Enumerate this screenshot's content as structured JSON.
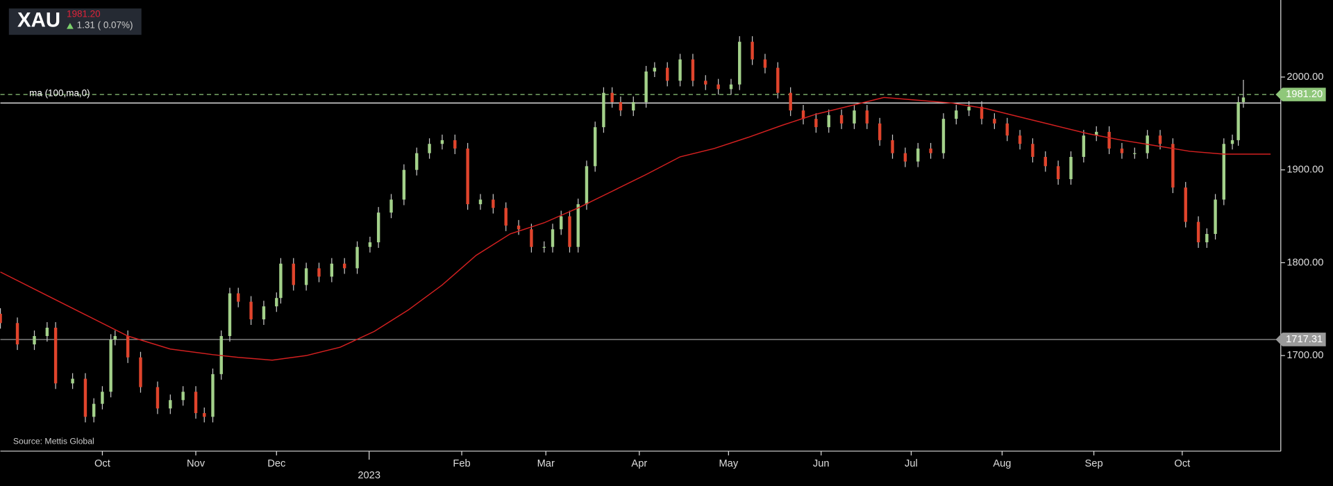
{
  "chart_data": {
    "type": "candlestick",
    "symbol": "XAU",
    "price": "1981.20",
    "change": "1.31 ( 0.07%)",
    "source": "Source: Mettis Global",
    "up_color": "#a3d18a",
    "down_color": "#e0442c",
    "x": [
      0,
      4,
      8,
      11,
      13,
      17,
      20,
      22,
      24,
      26,
      27,
      30,
      33,
      37,
      40,
      43,
      46,
      48,
      50,
      52,
      54,
      56,
      59,
      62,
      65,
      66,
      69,
      72,
      75,
      78,
      81,
      84,
      87,
      89,
      92,
      95,
      98,
      101,
      104,
      107,
      110,
      113,
      116,
      119,
      122,
      125,
      128,
      130,
      132,
      134,
      136,
      138,
      140,
      142,
      144,
      146,
      149,
      152,
      154,
      157,
      160,
      163,
      166,
      169,
      172,
      174,
      177,
      180,
      183,
      186,
      189,
      192,
      195,
      198,
      201,
      204,
      207,
      210,
      213,
      216,
      219,
      222,
      225,
      228,
      231,
      234,
      237,
      240,
      243,
      246,
      249,
      252,
      255,
      258,
      261,
      264,
      267,
      270,
      273,
      276,
      279,
      282,
      284,
      286,
      288,
      290,
      291.4,
      292.6
    ],
    "open": [
      1745,
      1735,
      1712,
      1721,
      1730,
      1670,
      1675,
      1634,
      1648,
      1661,
      1717,
      1721,
      1698,
      1666,
      1643,
      1652,
      1661,
      1638,
      1634,
      1680,
      1721,
      1767,
      1758,
      1739,
      1753,
      1762,
      1799,
      1776,
      1794,
      1785,
      1799,
      1794,
      1817,
      1822,
      1854,
      1868,
      1900,
      1918,
      1928,
      1932,
      1923,
      1863,
      1868,
      1859,
      1840,
      1836,
      1817,
      1817,
      1836,
      1850,
      1817,
      1863,
      1904,
      1946,
      1983,
      1973,
      1964,
      1973,
      2006,
      2010,
      1996,
      2019,
      1996,
      1992,
      1987,
      1992,
      2038,
      2019,
      2010,
      1983,
      1964,
      1955,
      1946,
      1959,
      1950,
      1964,
      1950,
      1932,
      1918,
      1909,
      1923,
      1918,
      1955,
      1964,
      1968,
      1955,
      1950,
      1937,
      1928,
      1914,
      1904,
      1890,
      1914,
      1937,
      1941,
      1923,
      1918,
      1918,
      1937,
      1928,
      1881,
      1844,
      1822,
      1831,
      1868,
      1928,
      1932,
      1973
    ],
    "high": [
      1751,
      1741,
      1727,
      1736,
      1736,
      1681,
      1681,
      1654,
      1667,
      1723,
      1727,
      1727,
      1704,
      1672,
      1658,
      1667,
      1667,
      1644,
      1686,
      1727,
      1773,
      1773,
      1764,
      1759,
      1768,
      1805,
      1805,
      1800,
      1800,
      1805,
      1805,
      1823,
      1828,
      1860,
      1874,
      1906,
      1924,
      1934,
      1938,
      1938,
      1929,
      1874,
      1874,
      1865,
      1846,
      1842,
      1823,
      1842,
      1856,
      1856,
      1869,
      1910,
      1952,
      1989,
      1989,
      1979,
      1979,
      2012,
      2016,
      2016,
      2025,
      2025,
      2002,
      1998,
      1998,
      2044,
      2044,
      2025,
      2016,
      1989,
      1970,
      1961,
      1965,
      1965,
      1970,
      1970,
      1956,
      1938,
      1924,
      1929,
      1929,
      1961,
      1970,
      1974,
      1974,
      1961,
      1956,
      1943,
      1934,
      1920,
      1910,
      1920,
      1943,
      1947,
      1947,
      1929,
      1924,
      1943,
      1943,
      1934,
      1887,
      1850,
      1837,
      1874,
      1934,
      1938,
      1979,
      1997
    ],
    "low": [
      1729,
      1706,
      1706,
      1715,
      1664,
      1664,
      1628,
      1628,
      1642,
      1655,
      1711,
      1692,
      1660,
      1637,
      1637,
      1646,
      1632,
      1628,
      1628,
      1674,
      1715,
      1752,
      1733,
      1733,
      1747,
      1756,
      1770,
      1770,
      1779,
      1779,
      1788,
      1788,
      1811,
      1816,
      1848,
      1862,
      1894,
      1912,
      1922,
      1917,
      1857,
      1857,
      1853,
      1834,
      1830,
      1811,
      1811,
      1811,
      1830,
      1811,
      1811,
      1857,
      1898,
      1940,
      1967,
      1958,
      1958,
      1967,
      2000,
      1990,
      1990,
      1990,
      1986,
      1981,
      1981,
      1986,
      2013,
      2004,
      1977,
      1958,
      1949,
      1940,
      1940,
      1944,
      1944,
      1944,
      1926,
      1912,
      1903,
      1903,
      1912,
      1912,
      1949,
      1958,
      1949,
      1944,
      1931,
      1922,
      1908,
      1898,
      1884,
      1884,
      1908,
      1931,
      1917,
      1912,
      1912,
      1912,
      1922,
      1875,
      1838,
      1816,
      1816,
      1825,
      1862,
      1922,
      1926,
      1967
    ],
    "close": [
      1735,
      1712,
      1721,
      1730,
      1670,
      1675,
      1634,
      1648,
      1661,
      1717,
      1721,
      1698,
      1666,
      1643,
      1652,
      1661,
      1638,
      1634,
      1680,
      1721,
      1767,
      1758,
      1739,
      1753,
      1762,
      1799,
      1776,
      1794,
      1785,
      1799,
      1794,
      1817,
      1822,
      1854,
      1868,
      1900,
      1918,
      1928,
      1932,
      1923,
      1863,
      1868,
      1859,
      1840,
      1836,
      1817,
      1817,
      1836,
      1850,
      1817,
      1863,
      1904,
      1946,
      1983,
      1973,
      1964,
      1973,
      2006,
      2010,
      1996,
      2019,
      1996,
      1992,
      1987,
      1992,
      2038,
      2019,
      2010,
      1983,
      1964,
      1955,
      1946,
      1959,
      1950,
      1964,
      1950,
      1932,
      1918,
      1909,
      1923,
      1918,
      1955,
      1964,
      1968,
      1955,
      1950,
      1937,
      1928,
      1914,
      1904,
      1890,
      1914,
      1937,
      1941,
      1923,
      1918,
      1918,
      1937,
      1928,
      1881,
      1844,
      1822,
      1831,
      1868,
      1928,
      1932,
      1973,
      1978
    ],
    "ma": {
      "name": "ma (100,ma,0)",
      "color": "#d42020",
      "level": 1972,
      "x": [
        0,
        10,
        20,
        30,
        40,
        50,
        56,
        64,
        72,
        80,
        88,
        96,
        104,
        112,
        120,
        128,
        136,
        144,
        152,
        160,
        168,
        176,
        184,
        192,
        200,
        208,
        216,
        224,
        232,
        240,
        248,
        256,
        264,
        272,
        280,
        288,
        299
      ],
      "values": [
        1790,
        1767,
        1744,
        1721,
        1707,
        1701,
        1698,
        1695,
        1700,
        1709,
        1726,
        1749,
        1776,
        1808,
        1831,
        1843,
        1859,
        1877,
        1895,
        1914,
        1923,
        1935,
        1948,
        1960,
        1969,
        1978,
        1975,
        1972,
        1966,
        1957,
        1948,
        1939,
        1932,
        1926,
        1920,
        1917,
        1917
      ]
    },
    "price_lines": [
      {
        "value": 1981.2,
        "label": "1981.20",
        "color": "#8fc77a",
        "dashed": true
      },
      {
        "value": 1717.31,
        "label": "1717.31",
        "color": "#9a9a9a",
        "dashed": false
      }
    ],
    "xlim": [
      0,
      301.4
    ],
    "ylim": [
      1597,
      2083
    ],
    "xticks": [
      {
        "value": 24,
        "label": "Oct"
      },
      {
        "value": 46,
        "label": "Nov"
      },
      {
        "value": 65,
        "label": "Dec"
      },
      {
        "value": 108.6,
        "label": "Feb"
      },
      {
        "value": 128.4,
        "label": "Mar"
      },
      {
        "value": 150.4,
        "label": "Apr"
      },
      {
        "value": 171.4,
        "label": "May"
      },
      {
        "value": 193.2,
        "label": "Jun"
      },
      {
        "value": 214.4,
        "label": "Jul"
      },
      {
        "value": 235.8,
        "label": "Aug"
      },
      {
        "value": 257.4,
        "label": "Sep"
      },
      {
        "value": 278.2,
        "label": "Oct"
      }
    ],
    "year_ticks": [
      {
        "value": 86.8,
        "label": "2023"
      }
    ],
    "yticks": [
      {
        "value": 1700,
        "label": "1700.00"
      },
      {
        "value": 1800,
        "label": "1800.00"
      },
      {
        "value": 1900,
        "label": "1900.00"
      },
      {
        "value": 2000,
        "label": "2000.00"
      }
    ]
  }
}
